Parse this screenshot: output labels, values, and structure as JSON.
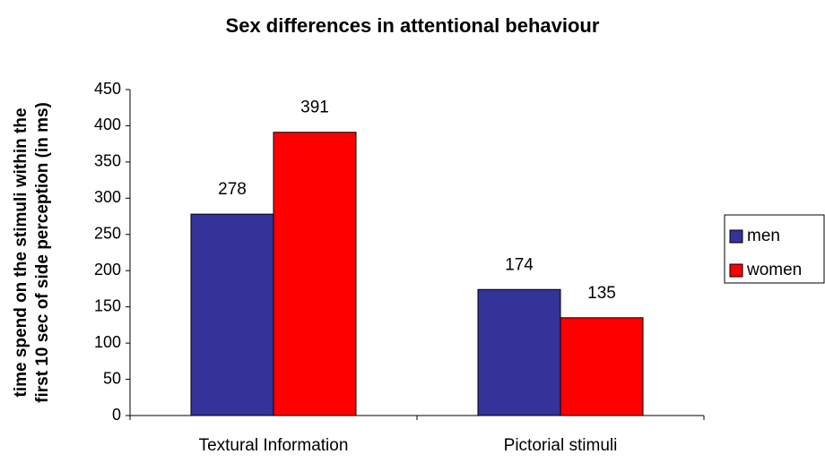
{
  "chart_data": {
    "type": "bar",
    "title": "Sex differences in attentional behaviour",
    "ylabel": [
      "time spend on the stimuli within the",
      "first 10 sec of side perception (in ms)"
    ],
    "categories": [
      "Textural Information",
      "Pictorial stimuli"
    ],
    "series": [
      {
        "name": "men",
        "color": "#333399",
        "values": [
          278,
          174
        ]
      },
      {
        "name": "women",
        "color": "#ff0000",
        "values": [
          391,
          135
        ]
      }
    ],
    "ylim": [
      0,
      450
    ],
    "yticks": [
      0,
      50,
      100,
      150,
      200,
      250,
      300,
      350,
      400,
      450
    ],
    "legend": "right"
  }
}
